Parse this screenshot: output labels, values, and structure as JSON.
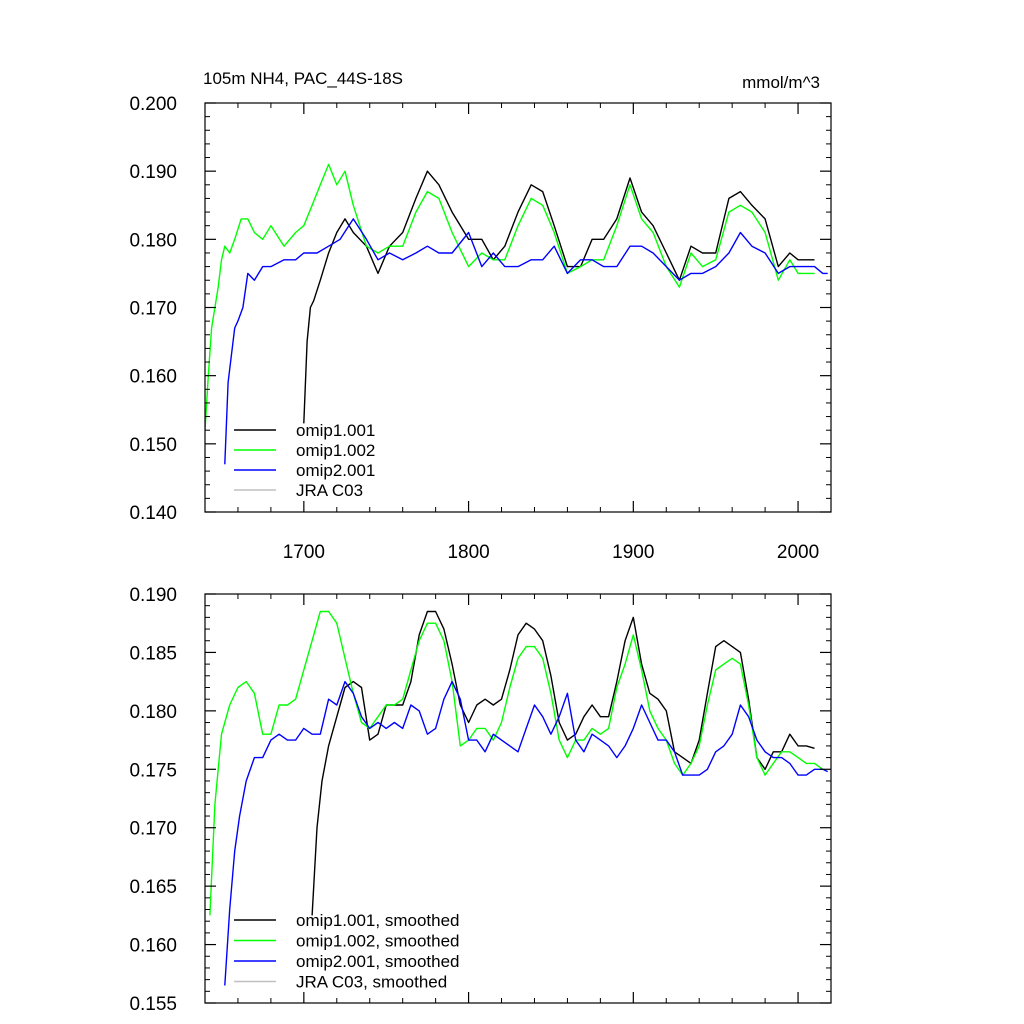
{
  "chart_data": [
    {
      "type": "line",
      "title": "105m NH4, PAC_44S-18S",
      "units": "mmol/m^3",
      "xlim": [
        1640,
        2020
      ],
      "ylim": [
        0.14,
        0.2
      ],
      "xticks": [
        1700,
        1800,
        1900,
        2000
      ],
      "yticks": [
        0.14,
        0.15,
        0.16,
        0.17,
        0.18,
        0.19,
        0.2
      ],
      "ytick_labels": [
        "0.140",
        "0.150",
        "0.160",
        "0.170",
        "0.180",
        "0.190",
        "0.200"
      ],
      "legend": {
        "placement": "bottom-left"
      },
      "series": [
        {
          "name": "omip1.001",
          "color": "#000000",
          "smoothed": false,
          "x": [
            1700,
            1702,
            1704,
            1706,
            1710,
            1715,
            1720,
            1725,
            1730,
            1738,
            1745,
            1752,
            1760,
            1768,
            1775,
            1782,
            1790,
            1800,
            1808,
            1815,
            1822,
            1830,
            1838,
            1845,
            1852,
            1860,
            1868,
            1875,
            1882,
            1890,
            1898,
            1905,
            1912,
            1920,
            1928,
            1935,
            1942,
            1950,
            1958,
            1965,
            1972,
            1980,
            1988,
            1995,
            2000,
            2005,
            2010
          ],
          "y": [
            0.153,
            0.165,
            0.17,
            0.171,
            0.174,
            0.178,
            0.181,
            0.183,
            0.181,
            0.179,
            0.175,
            0.179,
            0.181,
            0.186,
            0.19,
            0.188,
            0.184,
            0.18,
            0.18,
            0.177,
            0.179,
            0.184,
            0.188,
            0.187,
            0.182,
            0.176,
            0.176,
            0.18,
            0.18,
            0.183,
            0.189,
            0.184,
            0.182,
            0.178,
            0.174,
            0.179,
            0.178,
            0.178,
            0.186,
            0.187,
            0.185,
            0.183,
            0.176,
            0.178,
            0.177,
            0.177,
            0.177
          ]
        },
        {
          "name": "omip1.002",
          "color": "#00ff00",
          "smoothed": false,
          "x": [
            1640,
            1642,
            1644,
            1646,
            1648,
            1650,
            1652,
            1655,
            1658,
            1662,
            1666,
            1670,
            1675,
            1680,
            1688,
            1695,
            1700,
            1705,
            1710,
            1715,
            1720,
            1725,
            1730,
            1738,
            1745,
            1752,
            1760,
            1768,
            1775,
            1782,
            1790,
            1800,
            1808,
            1815,
            1822,
            1830,
            1838,
            1845,
            1852,
            1860,
            1868,
            1875,
            1882,
            1890,
            1898,
            1905,
            1912,
            1920,
            1928,
            1935,
            1942,
            1950,
            1958,
            1965,
            1972,
            1980,
            1988,
            1995,
            2000,
            2005,
            2010
          ],
          "y": [
            0.152,
            0.16,
            0.167,
            0.17,
            0.173,
            0.177,
            0.179,
            0.178,
            0.18,
            0.183,
            0.183,
            0.181,
            0.18,
            0.182,
            0.179,
            0.181,
            0.182,
            0.185,
            0.188,
            0.191,
            0.188,
            0.19,
            0.185,
            0.179,
            0.178,
            0.179,
            0.179,
            0.184,
            0.187,
            0.186,
            0.181,
            0.176,
            0.178,
            0.177,
            0.177,
            0.182,
            0.186,
            0.185,
            0.181,
            0.175,
            0.176,
            0.177,
            0.177,
            0.182,
            0.188,
            0.183,
            0.181,
            0.176,
            0.173,
            0.178,
            0.176,
            0.177,
            0.184,
            0.185,
            0.184,
            0.181,
            0.174,
            0.177,
            0.175,
            0.175,
            0.175
          ]
        },
        {
          "name": "omip2.001",
          "color": "#0000ff",
          "smoothed": false,
          "x": [
            1652,
            1654,
            1656,
            1658,
            1660,
            1663,
            1666,
            1670,
            1675,
            1680,
            1688,
            1695,
            1700,
            1708,
            1715,
            1722,
            1730,
            1738,
            1745,
            1752,
            1760,
            1768,
            1775,
            1782,
            1790,
            1800,
            1808,
            1815,
            1822,
            1830,
            1838,
            1845,
            1852,
            1860,
            1868,
            1875,
            1882,
            1890,
            1898,
            1905,
            1912,
            1920,
            1928,
            1935,
            1942,
            1950,
            1958,
            1965,
            1972,
            1980,
            1988,
            1995,
            2000,
            2005,
            2010,
            2015,
            2018
          ],
          "y": [
            0.147,
            0.159,
            0.163,
            0.167,
            0.168,
            0.17,
            0.175,
            0.174,
            0.176,
            0.176,
            0.177,
            0.177,
            0.178,
            0.178,
            0.179,
            0.18,
            0.183,
            0.18,
            0.177,
            0.178,
            0.177,
            0.178,
            0.179,
            0.178,
            0.178,
            0.181,
            0.176,
            0.178,
            0.176,
            0.176,
            0.177,
            0.177,
            0.179,
            0.175,
            0.177,
            0.177,
            0.176,
            0.176,
            0.179,
            0.179,
            0.178,
            0.176,
            0.174,
            0.175,
            0.175,
            0.176,
            0.178,
            0.181,
            0.179,
            0.178,
            0.175,
            0.176,
            0.176,
            0.176,
            0.176,
            0.175,
            0.175
          ]
        },
        {
          "name": "JRA C03",
          "color": "#c0c0c0",
          "smoothed": false,
          "x": [],
          "y": []
        }
      ]
    },
    {
      "type": "line",
      "title": "",
      "xlim": [
        1640,
        2020
      ],
      "ylim": [
        0.155,
        0.19
      ],
      "xticks": [
        1700,
        1800,
        1900,
        2000
      ],
      "yticks": [
        0.155,
        0.16,
        0.165,
        0.17,
        0.175,
        0.18,
        0.185,
        0.19
      ],
      "ytick_labels": [
        "0.155",
        "0.160",
        "0.165",
        "0.170",
        "0.175",
        "0.180",
        "0.185",
        "0.190"
      ],
      "legend": {
        "placement": "bottom-left"
      },
      "series": [
        {
          "name": "omip1.001, smoothed",
          "color": "#000000",
          "smoothed": true,
          "x": [
            1705,
            1708,
            1711,
            1715,
            1720,
            1725,
            1730,
            1735,
            1740,
            1745,
            1750,
            1755,
            1760,
            1765,
            1770,
            1775,
            1780,
            1785,
            1790,
            1795,
            1800,
            1805,
            1810,
            1815,
            1820,
            1825,
            1830,
            1835,
            1840,
            1845,
            1850,
            1855,
            1860,
            1865,
            1870,
            1875,
            1880,
            1885,
            1890,
            1895,
            1900,
            1905,
            1910,
            1915,
            1920,
            1925,
            1930,
            1935,
            1940,
            1945,
            1950,
            1955,
            1960,
            1965,
            1970,
            1975,
            1980,
            1985,
            1990,
            1995,
            2000,
            2005,
            2010
          ],
          "y": [
            0.1625,
            0.17,
            0.174,
            0.177,
            0.1795,
            0.182,
            0.1825,
            0.182,
            0.1775,
            0.178,
            0.1805,
            0.1805,
            0.1805,
            0.1825,
            0.1865,
            0.1885,
            0.1885,
            0.187,
            0.184,
            0.1805,
            0.179,
            0.1805,
            0.181,
            0.1805,
            0.181,
            0.1835,
            0.1865,
            0.1875,
            0.187,
            0.186,
            0.183,
            0.179,
            0.1775,
            0.178,
            0.1795,
            0.1805,
            0.1795,
            0.1795,
            0.1825,
            0.186,
            0.188,
            0.184,
            0.1815,
            0.181,
            0.18,
            0.1765,
            0.176,
            0.1755,
            0.1775,
            0.1815,
            0.1855,
            0.186,
            0.1855,
            0.185,
            0.181,
            0.176,
            0.175,
            0.1765,
            0.1765,
            0.178,
            0.177,
            0.177,
            0.1768
          ]
        },
        {
          "name": "omip1.002, smoothed",
          "color": "#00ff00",
          "smoothed": true,
          "x": [
            1643,
            1646,
            1650,
            1655,
            1660,
            1665,
            1670,
            1675,
            1680,
            1685,
            1690,
            1695,
            1700,
            1705,
            1710,
            1715,
            1720,
            1725,
            1730,
            1735,
            1740,
            1745,
            1750,
            1755,
            1760,
            1765,
            1770,
            1775,
            1780,
            1785,
            1790,
            1795,
            1800,
            1805,
            1810,
            1815,
            1820,
            1825,
            1830,
            1835,
            1840,
            1845,
            1850,
            1855,
            1860,
            1865,
            1870,
            1875,
            1880,
            1885,
            1890,
            1895,
            1900,
            1905,
            1910,
            1915,
            1920,
            1925,
            1930,
            1935,
            1940,
            1945,
            1950,
            1955,
            1960,
            1965,
            1970,
            1975,
            1980,
            1985,
            1990,
            1995,
            2000,
            2005,
            2010,
            2015
          ],
          "y": [
            0.1625,
            0.172,
            0.178,
            0.1805,
            0.182,
            0.1825,
            0.1815,
            0.178,
            0.178,
            0.1805,
            0.1805,
            0.181,
            0.1835,
            0.186,
            0.1885,
            0.1885,
            0.1875,
            0.1845,
            0.1815,
            0.179,
            0.1785,
            0.1795,
            0.1805,
            0.1805,
            0.181,
            0.1835,
            0.186,
            0.1875,
            0.1875,
            0.186,
            0.1825,
            0.177,
            0.1775,
            0.1785,
            0.1785,
            0.1775,
            0.179,
            0.182,
            0.1845,
            0.1855,
            0.1855,
            0.1845,
            0.1815,
            0.1775,
            0.176,
            0.1775,
            0.1775,
            0.1785,
            0.178,
            0.1785,
            0.182,
            0.184,
            0.1865,
            0.1835,
            0.18,
            0.1785,
            0.1775,
            0.1755,
            0.1745,
            0.1755,
            0.177,
            0.1805,
            0.1835,
            0.184,
            0.1845,
            0.184,
            0.1805,
            0.176,
            0.1745,
            0.1755,
            0.1765,
            0.1765,
            0.176,
            0.1755,
            0.1755,
            0.175
          ]
        },
        {
          "name": "omip2.001, smoothed",
          "color": "#0000ff",
          "smoothed": true,
          "x": [
            1652,
            1655,
            1658,
            1661,
            1665,
            1670,
            1675,
            1680,
            1685,
            1690,
            1695,
            1700,
            1705,
            1710,
            1715,
            1720,
            1725,
            1730,
            1735,
            1740,
            1745,
            1750,
            1755,
            1760,
            1765,
            1770,
            1775,
            1780,
            1785,
            1790,
            1795,
            1800,
            1805,
            1810,
            1815,
            1820,
            1825,
            1830,
            1835,
            1840,
            1845,
            1850,
            1855,
            1860,
            1865,
            1870,
            1875,
            1880,
            1885,
            1890,
            1895,
            1900,
            1905,
            1910,
            1915,
            1920,
            1925,
            1930,
            1935,
            1940,
            1945,
            1950,
            1955,
            1960,
            1965,
            1970,
            1975,
            1980,
            1985,
            1990,
            1995,
            2000,
            2005,
            2010,
            2015,
            2018
          ],
          "y": [
            0.1565,
            0.163,
            0.168,
            0.171,
            0.174,
            0.176,
            0.176,
            0.1775,
            0.178,
            0.1775,
            0.1775,
            0.1785,
            0.178,
            0.178,
            0.181,
            0.1805,
            0.1825,
            0.1815,
            0.1795,
            0.1785,
            0.179,
            0.1785,
            0.179,
            0.1785,
            0.1805,
            0.18,
            0.178,
            0.1785,
            0.181,
            0.1825,
            0.181,
            0.1775,
            0.1775,
            0.1765,
            0.178,
            0.1775,
            0.177,
            0.1765,
            0.1785,
            0.1805,
            0.1795,
            0.178,
            0.1795,
            0.1815,
            0.1775,
            0.1765,
            0.178,
            0.1775,
            0.177,
            0.176,
            0.177,
            0.1785,
            0.1805,
            0.179,
            0.1775,
            0.1775,
            0.1765,
            0.1745,
            0.1745,
            0.1745,
            0.175,
            0.1765,
            0.177,
            0.178,
            0.1805,
            0.1795,
            0.1775,
            0.1765,
            0.176,
            0.176,
            0.1755,
            0.1745,
            0.1745,
            0.175,
            0.175,
            0.1748
          ]
        },
        {
          "name": "JRA C03, smoothed",
          "color": "#c0c0c0",
          "smoothed": true,
          "x": [],
          "y": []
        }
      ]
    }
  ]
}
